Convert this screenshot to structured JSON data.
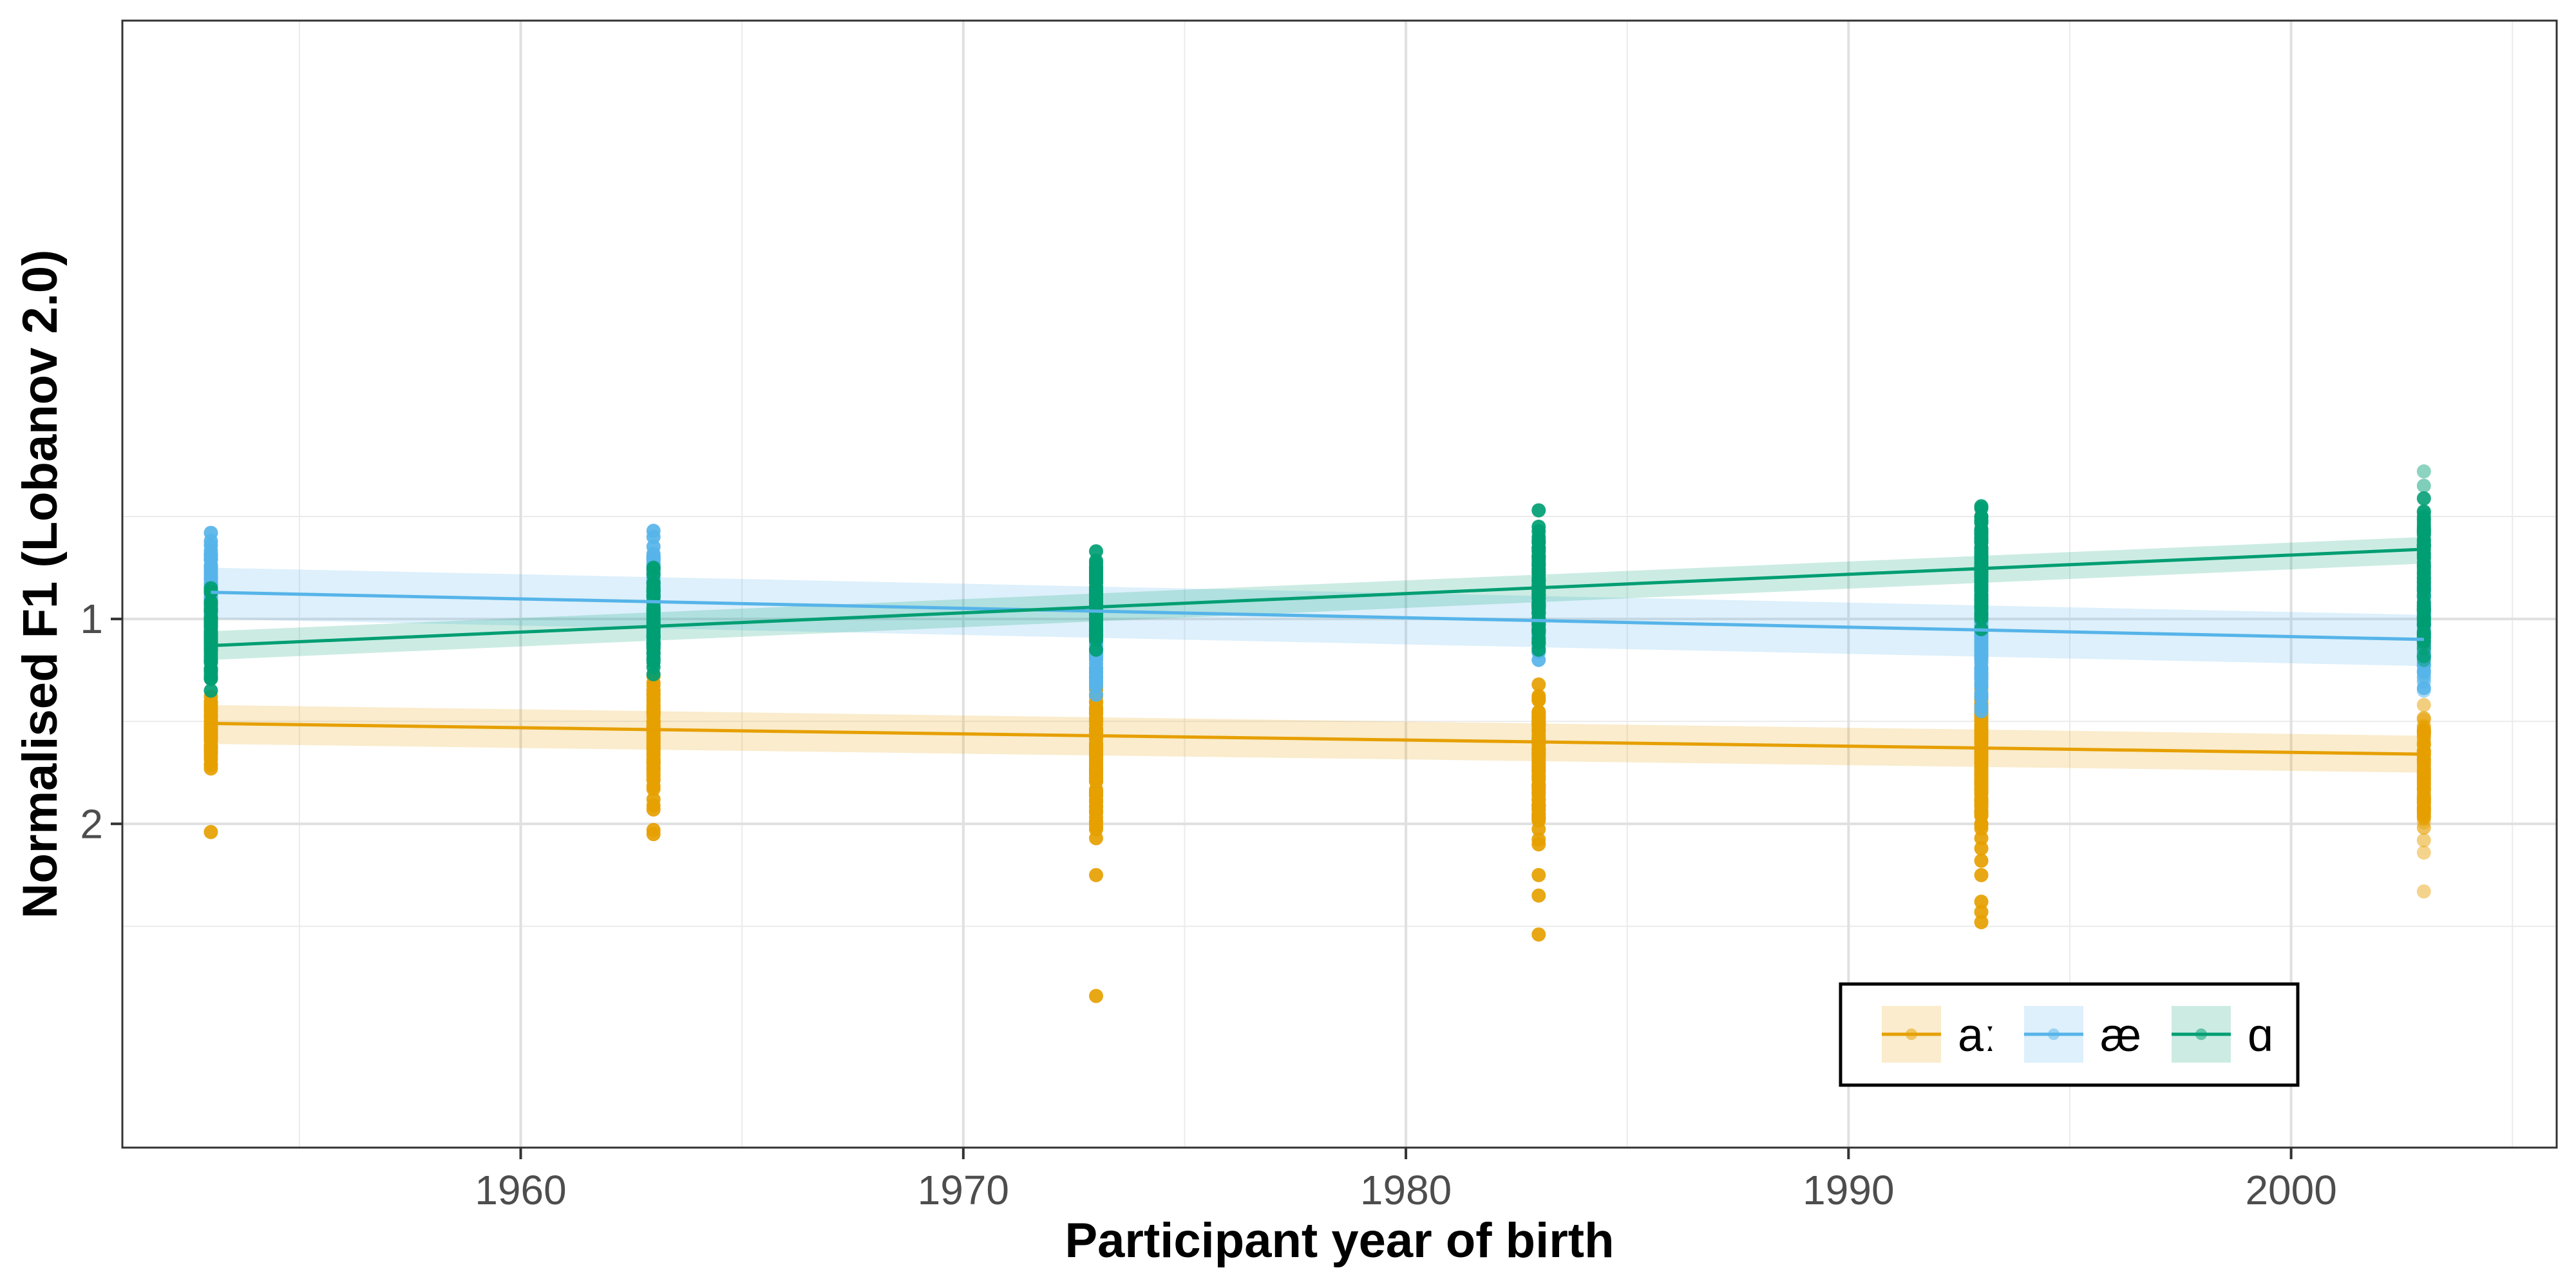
{
  "chart_data": {
    "type": "scatter",
    "title": "",
    "xlabel": "Participant year of birth",
    "ylabel": "Normalised F1 (Lobanov 2.0)",
    "xlim": [
      1951,
      2006
    ],
    "ylim": [
      -1.92,
      3.58
    ],
    "y_reversed": true,
    "x_ticks": [
      1960,
      1970,
      1980,
      1990,
      2000
    ],
    "x_tick_labels": [
      "1960",
      "1970",
      "1980",
      "1990",
      "2000"
    ],
    "x_minor_ticks": [
      1955,
      1965,
      1975,
      1985,
      1995,
      2005
    ],
    "y_ticks": [
      1,
      2
    ],
    "y_tick_labels": [
      "1",
      "2"
    ],
    "y_minor_ticks": [
      0.5,
      1.5,
      2.5
    ],
    "grid": true,
    "legend_position": "bottom-right",
    "cohorts": [
      1953,
      1963,
      1973,
      1983,
      1993,
      2003
    ],
    "series": [
      {
        "name": "aː",
        "color": "#E69F00",
        "fit_x": [
          1953,
          2003
        ],
        "fit_y": [
          1.51,
          1.66
        ],
        "band_lower": [
          1.42,
          1.57
        ],
        "band_upper": [
          1.61,
          1.75
        ],
        "point_ranges": [
          {
            "x": 1953,
            "min": 1.38,
            "max": 1.73,
            "outliers": [
              2.04
            ]
          },
          {
            "x": 1963,
            "min": 1.28,
            "max": 1.83,
            "outliers": [
              1.88,
              1.91,
              1.93,
              2.03,
              2.05
            ]
          },
          {
            "x": 1973,
            "min": 1.28,
            "max": 2.07,
            "outliers": [
              2.25,
              2.84
            ]
          },
          {
            "x": 1983,
            "min": 1.32,
            "max": 2.1,
            "outliers": [
              2.25,
              2.35,
              2.54
            ]
          },
          {
            "x": 1993,
            "min": 1.29,
            "max": 2.07,
            "outliers": [
              2.12,
              2.18,
              2.25,
              2.38,
              2.43,
              2.48
            ]
          },
          {
            "x": 2003,
            "min": 1.42,
            "max": 2.08,
            "outliers": [
              2.14,
              2.33
            ]
          }
        ]
      },
      {
        "name": "æ",
        "color": "#56B4E9",
        "fit_x": [
          1953,
          2003
        ],
        "fit_y": [
          0.87,
          1.1
        ],
        "band_lower": [
          0.75,
          0.98
        ],
        "band_upper": [
          1.0,
          1.23
        ],
        "point_ranges": [
          {
            "x": 1953,
            "min": 0.62,
            "max": 1.1,
            "outliers": [
              0.58
            ]
          },
          {
            "x": 1963,
            "min": 0.6,
            "max": 1.18,
            "outliers": [
              0.57
            ]
          },
          {
            "x": 1973,
            "min": 0.8,
            "max": 1.37,
            "outliers": []
          },
          {
            "x": 1983,
            "min": 0.85,
            "max": 1.2,
            "outliers": []
          },
          {
            "x": 1993,
            "min": 0.7,
            "max": 1.45,
            "outliers": []
          },
          {
            "x": 2003,
            "min": 0.75,
            "max": 1.35,
            "outliers": []
          }
        ]
      },
      {
        "name": "ɑ",
        "color": "#009E73",
        "fit_x": [
          1953,
          2003
        ],
        "fit_y": [
          1.13,
          0.66
        ],
        "band_lower": [
          1.06,
          0.6
        ],
        "band_upper": [
          1.2,
          0.73
        ],
        "point_ranges": [
          {
            "x": 1953,
            "min": 0.85,
            "max": 1.35,
            "outliers": []
          },
          {
            "x": 1963,
            "min": 0.75,
            "max": 1.27,
            "outliers": []
          },
          {
            "x": 1973,
            "min": 0.67,
            "max": 1.15,
            "outliers": []
          },
          {
            "x": 1983,
            "min": 0.55,
            "max": 1.15,
            "outliers": [
              0.47
            ]
          },
          {
            "x": 1993,
            "min": 0.45,
            "max": 1.05,
            "outliers": [
              0.46,
              0.5
            ]
          },
          {
            "x": 2003,
            "min": 0.35,
            "max": 1.2,
            "outliers": [
              0.28
            ]
          }
        ]
      }
    ]
  }
}
